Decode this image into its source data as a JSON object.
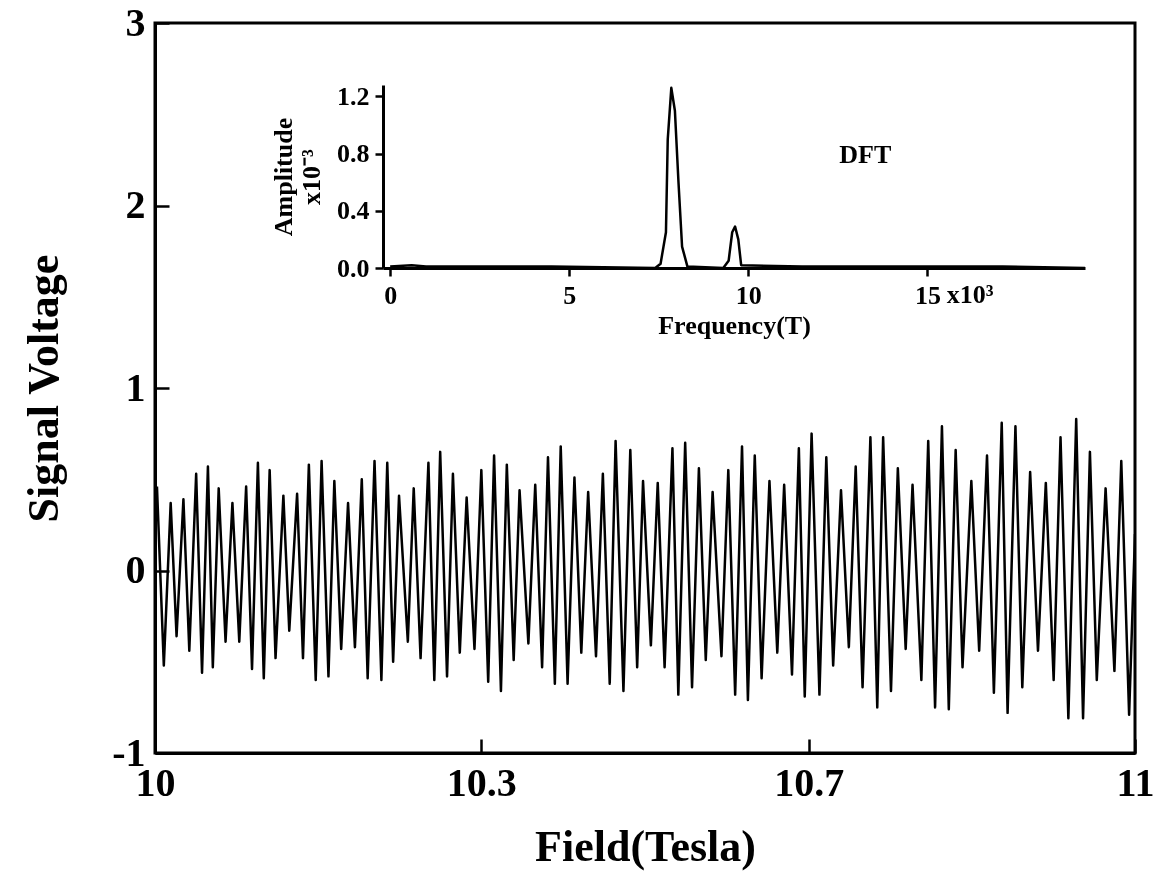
{
  "chart_data": [
    {
      "type": "line",
      "xlabel": "Field(Tesla)",
      "ylabel": "Signal Voltage",
      "xlim": [
        10,
        11
      ],
      "ylim": [
        -1,
        3
      ],
      "xticks": [
        10,
        {
          "value": 10.333,
          "label": "10.3"
        },
        {
          "value": 10.667,
          "label": "10.7"
        },
        11
      ],
      "yticks": [
        -1,
        0,
        1,
        2,
        3
      ],
      "x": [
        10.002,
        10.009,
        10.016,
        10.022,
        10.029,
        10.035,
        10.042,
        10.048,
        10.054,
        10.059,
        10.065,
        10.072,
        10.079,
        10.086,
        10.093,
        10.099,
        10.105,
        10.111,
        10.117,
        10.123,
        10.131,
        10.137,
        10.145,
        10.151,
        10.157,
        10.164,
        10.17,
        10.177,
        10.183,
        10.19,
        10.197,
        10.204,
        10.211,
        10.217,
        10.224,
        10.231,
        10.237,
        10.243,
        10.249,
        10.258,
        10.264,
        10.271,
        10.279,
        10.285,
        10.291,
        10.298,
        10.304,
        10.311,
        10.318,
        10.326,
        10.333,
        10.34,
        10.346,
        10.353,
        10.359,
        10.366,
        10.372,
        10.381,
        10.388,
        10.395,
        10.401,
        10.408,
        10.414,
        10.421,
        10.428,
        10.435,
        10.442,
        10.45,
        10.457,
        10.464,
        10.47,
        10.478,
        10.485,
        10.492,
        10.498,
        10.506,
        10.513,
        10.52,
        10.528,
        10.534,
        10.541,
        10.548,
        10.555,
        10.562,
        10.569,
        10.578,
        10.585,
        10.592,
        10.599,
        10.605,
        10.612,
        10.619,
        10.627,
        10.635,
        10.642,
        10.65,
        10.657,
        10.663,
        10.67,
        10.678,
        10.685,
        10.692,
        10.7,
        10.708,
        10.715,
        10.722,
        10.73,
        10.737,
        10.743,
        10.751,
        10.758,
        10.766,
        10.773,
        10.782,
        10.789,
        10.796,
        10.803,
        10.81,
        10.817,
        10.824,
        10.833,
        10.841,
        10.849,
        10.856,
        10.864,
        10.87,
        10.878,
        10.885,
        10.893,
        10.901,
        10.909,
        10.917,
        10.924,
        10.932,
        10.94,
        10.947,
        10.954,
        10.961,
        10.97,
        10.979,
        10.986,
        10.994,
        11.0
      ],
      "series": [
        {
          "color": "#000000",
          "values": [
            0.46,
            -0.52,
            0.37,
            -0.36,
            0.39,
            -0.44,
            0.53,
            -0.56,
            0.57,
            -0.53,
            0.45,
            -0.39,
            0.37,
            -0.39,
            0.46,
            -0.54,
            0.59,
            -0.59,
            0.55,
            -0.48,
            0.41,
            -0.33,
            0.42,
            -0.48,
            0.58,
            -0.6,
            0.6,
            -0.58,
            0.49,
            -0.43,
            0.37,
            -0.42,
            0.5,
            -0.59,
            0.6,
            -0.6,
            0.59,
            -0.5,
            0.41,
            -0.39,
            0.45,
            -0.48,
            0.59,
            -0.6,
            0.65,
            -0.58,
            0.53,
            -0.45,
            0.4,
            -0.43,
            0.55,
            -0.61,
            0.63,
            -0.66,
            0.58,
            -0.49,
            0.44,
            -0.4,
            0.47,
            -0.53,
            0.62,
            -0.62,
            0.68,
            -0.62,
            0.51,
            -0.45,
            0.43,
            -0.47,
            0.53,
            -0.62,
            0.71,
            -0.66,
            0.66,
            -0.53,
            0.49,
            -0.41,
            0.48,
            -0.53,
            0.67,
            -0.68,
            0.7,
            -0.64,
            0.56,
            -0.49,
            0.43,
            -0.47,
            0.55,
            -0.68,
            0.68,
            -0.71,
            0.63,
            -0.59,
            0.49,
            -0.45,
            0.47,
            -0.57,
            0.67,
            -0.69,
            0.75,
            -0.68,
            0.62,
            -0.52,
            0.44,
            -0.42,
            0.57,
            -0.64,
            0.73,
            -0.75,
            0.73,
            -0.66,
            0.56,
            -0.43,
            0.47,
            -0.6,
            0.71,
            -0.75,
            0.79,
            -0.76,
            0.66,
            -0.53,
            0.49,
            -0.44,
            0.63,
            -0.67,
            0.81,
            -0.78,
            0.79,
            -0.64,
            0.54,
            -0.44,
            0.48,
            -0.6,
            0.73,
            -0.81,
            0.83,
            -0.81,
            0.65,
            -0.6,
            0.45,
            -0.55,
            0.6,
            -0.79,
            0.2
          ]
        }
      ]
    },
    {
      "type": "line",
      "xlabel": "Frequency(T)",
      "ylabel": "Amplitude\nx10⁻³",
      "xlim": [
        -0.2,
        19.4
      ],
      "ylim": [
        0,
        1.28
      ],
      "xticks": [
        0,
        5,
        10,
        15
      ],
      "yticks": [
        {
          "value": 0,
          "label": "0.0"
        },
        {
          "value": 0.4,
          "label": "0.4"
        },
        {
          "value": 0.8,
          "label": "0.8"
        },
        {
          "value": 1.2,
          "label": "1.2"
        }
      ],
      "annotations": [
        "DFT",
        "x10³"
      ],
      "x": [
        0,
        0.6,
        1.0,
        2.6,
        3.8,
        4.5,
        7.4,
        7.55,
        7.7,
        7.75,
        7.85,
        7.95,
        8.05,
        8.15,
        8.3,
        9.3,
        9.45,
        9.55,
        9.63,
        9.72,
        9.8,
        11.5,
        15.6,
        17.1,
        19.4
      ],
      "series": [
        {
          "color": "#000000",
          "values": [
            0.01,
            0.02,
            0.01,
            0.01,
            0.01,
            0.01,
            0.0,
            0.03,
            0.25,
            0.9,
            1.26,
            1.1,
            0.6,
            0.15,
            0.01,
            0.0,
            0.05,
            0.25,
            0.29,
            0.2,
            0.02,
            0.01,
            0.01,
            0.01,
            0.0
          ]
        }
      ]
    }
  ]
}
